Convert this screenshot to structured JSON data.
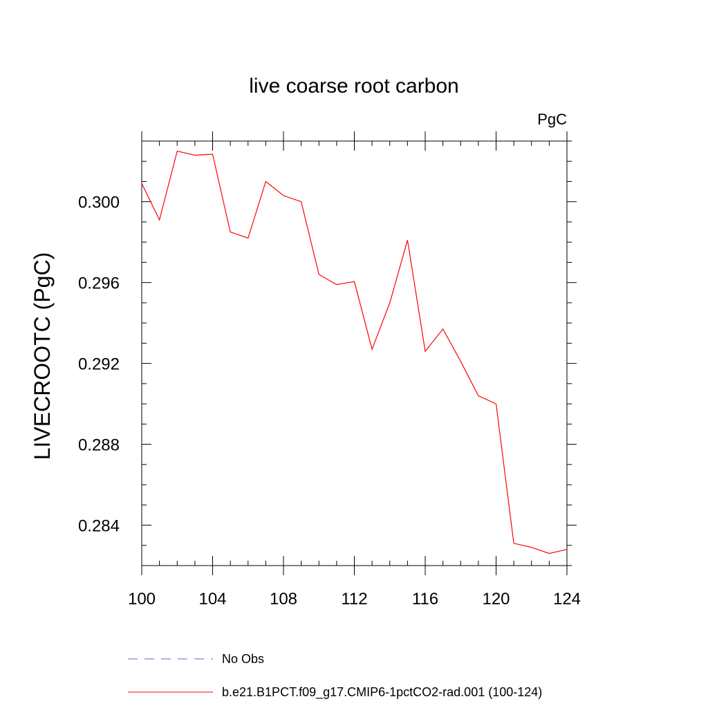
{
  "chart_data": {
    "type": "line",
    "title": "live coarse root carbon",
    "units_label": "PgC",
    "xlabel": "",
    "ylabel": "LIVECROOTC  (PgC)",
    "xlim": [
      100,
      124
    ],
    "ylim": [
      0.282,
      0.303
    ],
    "x_ticks": [
      100,
      104,
      108,
      112,
      116,
      120,
      124
    ],
    "x_tick_labels": [
      "100",
      "104",
      "108",
      "112",
      "116",
      "120",
      "124"
    ],
    "y_ticks": [
      0.284,
      0.288,
      0.292,
      0.296,
      0.3
    ],
    "y_tick_labels": [
      "0.284",
      "0.288",
      "0.292",
      "0.296",
      "0.300"
    ],
    "y_minor_step": 0.001,
    "x_minor_step": 1,
    "grid": false,
    "series": [
      {
        "name": "b.e21.B1PCT.f09_g17.CMIP6-1pctCO2-rad.001 (100-124)",
        "color": "#ff0000",
        "style": "solid",
        "x": [
          100,
          101,
          102,
          103,
          104,
          105,
          106,
          107,
          108,
          109,
          110,
          111,
          112,
          113,
          114,
          115,
          116,
          117,
          118,
          119,
          120,
          121,
          122,
          123,
          124
        ],
        "values": [
          0.3009,
          0.2991,
          0.3025,
          0.3023,
          0.30235,
          0.2985,
          0.2982,
          0.301,
          0.3003,
          0.3,
          0.2964,
          0.2959,
          0.29605,
          0.2927,
          0.295,
          0.2981,
          0.2926,
          0.2937,
          0.2921,
          0.2904,
          0.29,
          0.2831,
          0.2829,
          0.2826,
          0.2828
        ]
      }
    ],
    "legend": {
      "placement": "bottom",
      "entries": [
        {
          "label": "No Obs",
          "color": "#6666bb",
          "style": "dashed"
        },
        {
          "label": "b.e21.B1PCT.f09_g17.CMIP6-1pctCO2-rad.001 (100-124)",
          "color": "#ff0000",
          "style": "solid"
        }
      ]
    }
  }
}
